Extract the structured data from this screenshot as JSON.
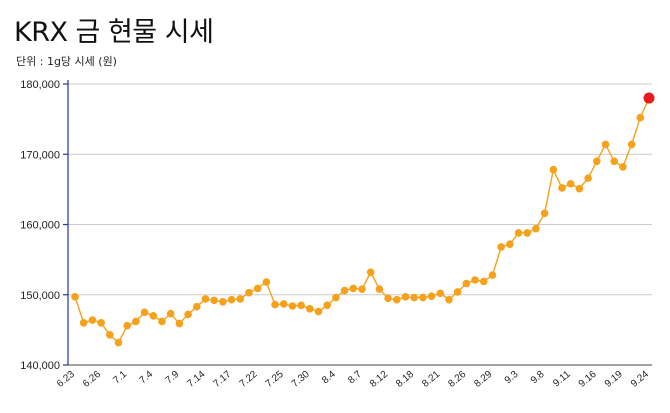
{
  "header": {
    "title": "KRX 금 현물 시세",
    "subtitle": "단위 : 1g당 시세 (원)"
  },
  "colors": {
    "line": "#f5a11b",
    "marker": "#f5a11b",
    "last_marker": "#e81c1c",
    "grid": "#cccccc",
    "axis": "#2233aa"
  },
  "chart_data": {
    "type": "line",
    "title": "KRX 금 현물 시세",
    "subtitle": "단위 : 1g당 시세 (원)",
    "ylim": [
      140000,
      180000
    ],
    "yticks": [
      140000,
      150000,
      160000,
      170000,
      180000
    ],
    "ytick_labels": [
      "140,000",
      "150,000",
      "160,000",
      "170,000",
      "180,000"
    ],
    "grid": true,
    "legend": "none",
    "xtick_labels": [
      {
        "index": 0,
        "label": "6.23"
      },
      {
        "index": 3,
        "label": "6.26"
      },
      {
        "index": 6,
        "label": "7.1"
      },
      {
        "index": 9,
        "label": "7.4"
      },
      {
        "index": 12,
        "label": "7.9"
      },
      {
        "index": 15,
        "label": "7.14"
      },
      {
        "index": 18,
        "label": "7.17"
      },
      {
        "index": 21,
        "label": "7.22"
      },
      {
        "index": 24,
        "label": "7.25"
      },
      {
        "index": 27,
        "label": "7.30"
      },
      {
        "index": 30,
        "label": "8.4"
      },
      {
        "index": 33,
        "label": "8.7"
      },
      {
        "index": 36,
        "label": "8.12"
      },
      {
        "index": 39,
        "label": "8.18"
      },
      {
        "index": 42,
        "label": "8.21"
      },
      {
        "index": 45,
        "label": "8.26"
      },
      {
        "index": 48,
        "label": "8.29"
      },
      {
        "index": 51,
        "label": "9.3"
      },
      {
        "index": 54,
        "label": "9.8"
      },
      {
        "index": 57,
        "label": "9.11"
      },
      {
        "index": 60,
        "label": "9.16"
      },
      {
        "index": 63,
        "label": "9.19"
      },
      {
        "index": 66,
        "label": "9.24"
      }
    ],
    "series": [
      {
        "values": [
          149700,
          146000,
          146400,
          146000,
          144300,
          143200,
          145600,
          146200,
          147500,
          147000,
          146200,
          147300,
          145900,
          147200,
          148300,
          149400,
          149200,
          149000,
          149300,
          149400,
          150300,
          150900,
          151800,
          148600,
          148700,
          148400,
          148500,
          148000,
          147600,
          148500,
          149600,
          150600,
          150900,
          150800,
          153200,
          150800,
          149500,
          149300,
          149700,
          149600,
          149600,
          149800,
          150200,
          149300,
          150400,
          151600,
          152100,
          151900,
          152800,
          156800,
          157200,
          158800,
          158800,
          159400,
          161600,
          167800,
          165200,
          165800,
          165100,
          166600,
          169000,
          171400,
          169000,
          168200,
          171400,
          175200,
          178000
        ]
      }
    ]
  }
}
